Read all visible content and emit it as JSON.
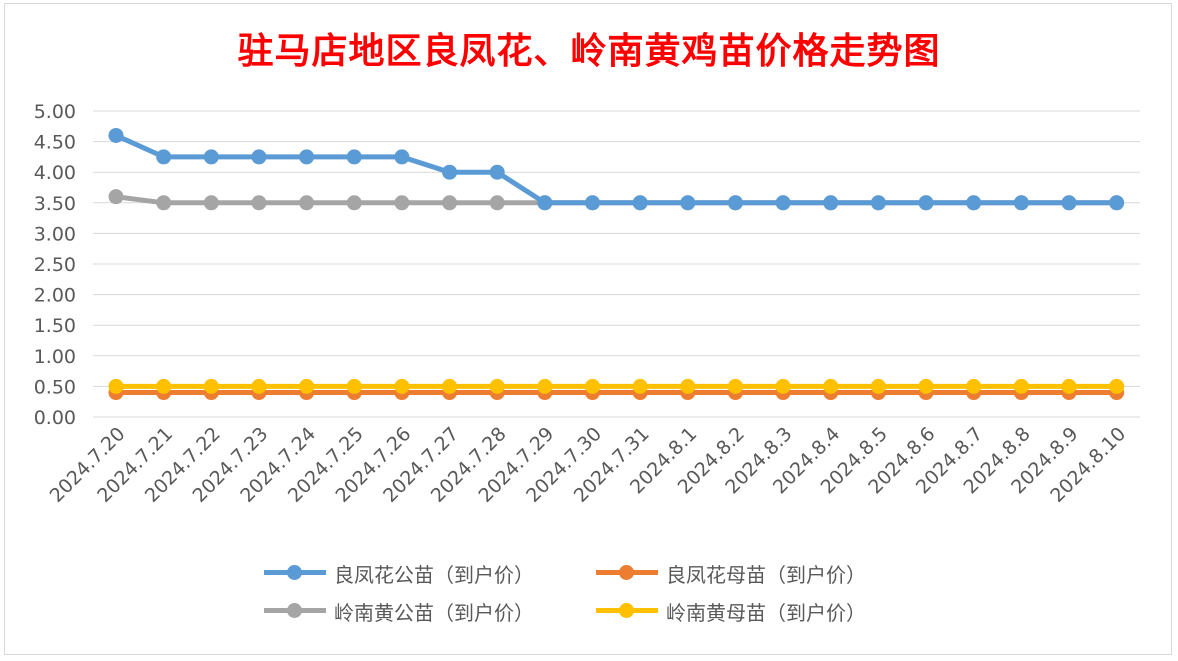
{
  "chart_data": {
    "type": "line",
    "title": "驻马店地区良凤花、岭南黄鸡苗价格走势图",
    "categories": [
      "2024.7.20",
      "2024.7.21",
      "2024.7.22",
      "2024.7.23",
      "2024.7.24",
      "2024.7.25",
      "2024.7.26",
      "2024.7.27",
      "2024.7.28",
      "2024.7.29",
      "2024.7.30",
      "2024.7.31",
      "2024.8.1",
      "2024.8.2",
      "2024.8.3",
      "2024.8.4",
      "2024.8.5",
      "2024.8.6",
      "2024.8.7",
      "2024.8.8",
      "2024.8.9",
      "2024.8.10"
    ],
    "ylim": [
      0,
      5
    ],
    "ytick_step": 0.5,
    "ytick_labels": [
      "0.00",
      "0.50",
      "1.00",
      "1.50",
      "2.00",
      "2.50",
      "3.00",
      "3.50",
      "4.00",
      "4.50",
      "5.00"
    ],
    "grid": true,
    "legend_position": "bottom",
    "series": [
      {
        "name": "良凤花公苗（到户价）",
        "color": "#5b9bd5",
        "values": [
          4.6,
          4.25,
          4.25,
          4.25,
          4.25,
          4.25,
          4.25,
          4.0,
          4.0,
          3.5,
          3.5,
          3.5,
          3.5,
          3.5,
          3.5,
          3.5,
          3.5,
          3.5,
          3.5,
          3.5,
          3.5,
          3.5
        ]
      },
      {
        "name": "良凤花母苗（到户价）",
        "color": "#ed7d31",
        "values": [
          0.4,
          0.4,
          0.4,
          0.4,
          0.4,
          0.4,
          0.4,
          0.4,
          0.4,
          0.4,
          0.4,
          0.4,
          0.4,
          0.4,
          0.4,
          0.4,
          0.4,
          0.4,
          0.4,
          0.4,
          0.4,
          0.4
        ]
      },
      {
        "name": "岭南黄公苗（到户价）",
        "color": "#a5a5a5",
        "values": [
          3.6,
          3.5,
          3.5,
          3.5,
          3.5,
          3.5,
          3.5,
          3.5,
          3.5,
          3.5,
          3.5,
          3.5,
          3.5,
          3.5,
          3.5,
          3.5,
          3.5,
          3.5,
          3.5,
          3.5,
          3.5,
          3.5
        ]
      },
      {
        "name": "岭南黄母苗（到户价）",
        "color": "#ffc000",
        "values": [
          0.5,
          0.5,
          0.5,
          0.5,
          0.5,
          0.5,
          0.5,
          0.5,
          0.5,
          0.5,
          0.5,
          0.5,
          0.5,
          0.5,
          0.5,
          0.5,
          0.5,
          0.5,
          0.5,
          0.5,
          0.5,
          0.5
        ]
      }
    ]
  },
  "legend_order": [
    0,
    1,
    2,
    3
  ]
}
